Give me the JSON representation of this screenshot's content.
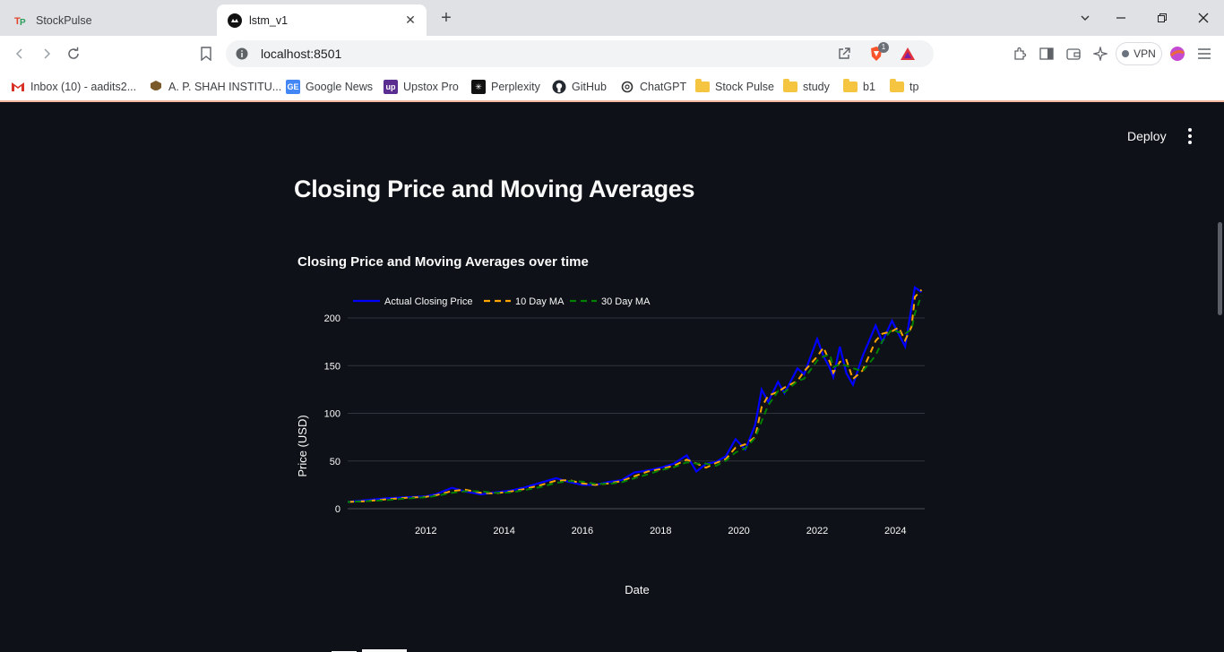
{
  "browser": {
    "tabs": [
      {
        "title": "StockPulse",
        "active": false
      },
      {
        "title": "lstm_v1",
        "active": true
      }
    ],
    "url": "localhost:8501",
    "vpn_label": "VPN",
    "brave_badge": "1",
    "bookmarks": [
      {
        "label": "Inbox (10) - aadits2...",
        "icon": "gmail-icon"
      },
      {
        "label": "A. P. SHAH INSTITU...",
        "icon": "institute-icon"
      },
      {
        "label": "Google News",
        "icon": "google-news-icon"
      },
      {
        "label": "Upstox Pro",
        "icon": "upstox-icon"
      },
      {
        "label": "Perplexity",
        "icon": "perplexity-icon"
      },
      {
        "label": "GitHub",
        "icon": "github-icon"
      },
      {
        "label": "ChatGPT",
        "icon": "chatgpt-icon"
      },
      {
        "label": "Stock Pulse",
        "icon": "folder-icon"
      },
      {
        "label": "study",
        "icon": "folder-icon"
      },
      {
        "label": "b1",
        "icon": "folder-icon"
      },
      {
        "label": "tp",
        "icon": "folder-icon"
      }
    ]
  },
  "app": {
    "deploy_label": "Deploy",
    "page_title": "Closing Price and Moving Averages"
  },
  "colors": {
    "background": "#0e1117",
    "actual": "#0000ff",
    "ma10": "#ffa500",
    "ma30": "#008000",
    "grid": "#31333f"
  },
  "chart_data": {
    "type": "line",
    "title": "Closing Price and Moving Averages over time",
    "xlabel": "Date",
    "ylabel": "Price (USD)",
    "ylim": [
      0,
      235
    ],
    "xlim": [
      "2010-01-01",
      "2024-10-01"
    ],
    "yticks": [
      0,
      50,
      100,
      150,
      200
    ],
    "xticks": [
      "2012",
      "2014",
      "2016",
      "2018",
      "2020",
      "2022",
      "2024"
    ],
    "legend_position": "top",
    "grid": true,
    "series": [
      {
        "name": "Actual Closing Price",
        "style": "solid",
        "color": "#0000ff"
      },
      {
        "name": "10 Day MA",
        "style": "dashed",
        "color": "#ffa500"
      },
      {
        "name": "30 Day MA",
        "style": "dashed",
        "color": "#008000"
      }
    ],
    "x": [
      "2010-01",
      "2010-07",
      "2011-01",
      "2011-07",
      "2012-01",
      "2012-04",
      "2012-09",
      "2013-01",
      "2013-06",
      "2013-10",
      "2014-03",
      "2014-07",
      "2014-12",
      "2015-05",
      "2015-09",
      "2016-01",
      "2016-05",
      "2016-09",
      "2017-01",
      "2017-05",
      "2017-09",
      "2018-01",
      "2018-05",
      "2018-09",
      "2018-12",
      "2019-03",
      "2019-06",
      "2019-09",
      "2019-12",
      "2020-03",
      "2020-06",
      "2020-08",
      "2020-10",
      "2021-01",
      "2021-03",
      "2021-07",
      "2021-09",
      "2022-01",
      "2022-03",
      "2022-05",
      "2022-06",
      "2022-08",
      "2022-10",
      "2022-12",
      "2023-03",
      "2023-07",
      "2023-09",
      "2023-12",
      "2024-02",
      "2024-04",
      "2024-06",
      "2024-07",
      "2024-09"
    ],
    "values": [
      7,
      9,
      11,
      12,
      13,
      15,
      22,
      18,
      15,
      17,
      19,
      22,
      27,
      32,
      28,
      25,
      25,
      28,
      30,
      38,
      40,
      43,
      47,
      56,
      39,
      47,
      49,
      55,
      73,
      62,
      88,
      125,
      112,
      133,
      121,
      147,
      141,
      178,
      160,
      147,
      138,
      170,
      142,
      130,
      160,
      192,
      175,
      197,
      183,
      170,
      212,
      232,
      227
    ]
  }
}
